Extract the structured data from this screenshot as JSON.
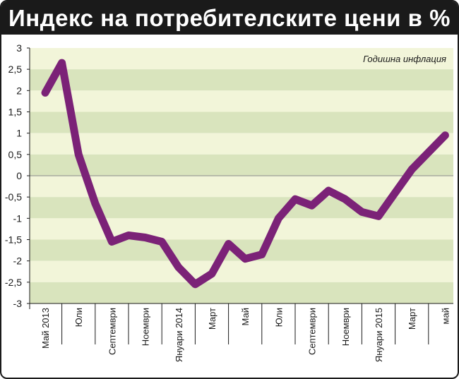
{
  "chart_data": {
    "type": "line",
    "title": "Индекс на потребителските цени в %",
    "annotation": "Годишна инфлация",
    "xlabel": "",
    "ylabel": "",
    "ylim": [
      -3,
      3
    ],
    "y_ticks": [
      "3",
      "2,5",
      "2",
      "1,5",
      "1",
      "0,5",
      "0",
      "-0,5",
      "-1",
      "-1,5",
      "-2",
      "-2,5",
      "-3"
    ],
    "x_tick_labels": [
      "Май 2013",
      "Юли",
      "Септември",
      "Ноември",
      "Януари 2014",
      "Март",
      "Май",
      "Юли",
      "Септември",
      "Ноември",
      "Януари 2015",
      "Март",
      "май"
    ],
    "grid": "horizontal bands",
    "series": [
      {
        "values": [
          1.95,
          2.65,
          0.5,
          -0.65,
          -1.55,
          -1.4,
          -1.45,
          -1.55,
          -2.15,
          -2.55,
          -2.3,
          -1.6,
          -1.95,
          -1.85,
          -1.0,
          -0.55,
          -0.7,
          -0.35,
          -0.55,
          -0.85,
          -0.95,
          -0.4,
          0.15,
          0.55,
          0.95
        ]
      }
    ],
    "colors": {
      "line": "#7b2277",
      "band_light": "#f2f5d9",
      "band_dark": "#d9e4bd",
      "title_bg": "#1a1a1a"
    }
  }
}
